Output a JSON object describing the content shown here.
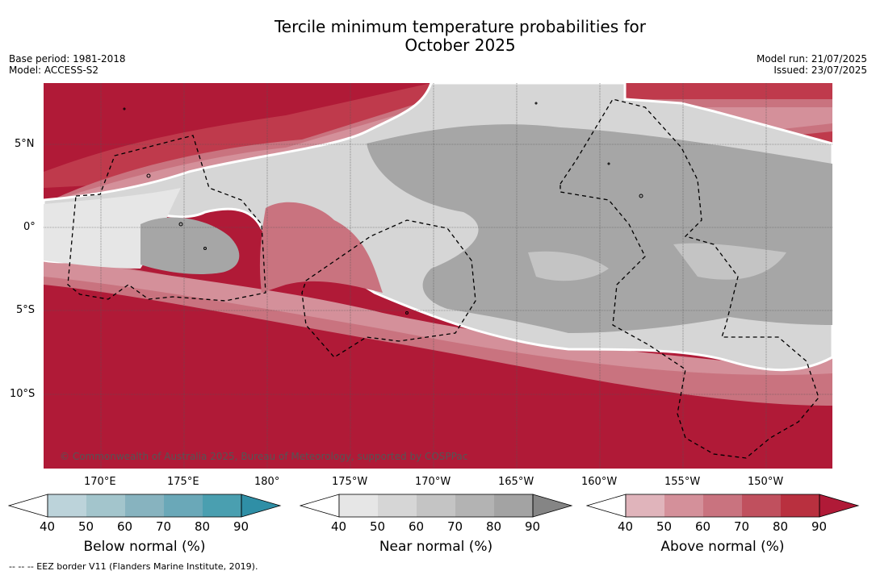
{
  "title_line1": "Tercile minimum temperature probabilities for",
  "title_line2": "October 2025",
  "base_period": "Base period: 1981-2018",
  "model": "Model: ACCESS-S2",
  "model_run": "Model run: 21/07/2025",
  "issued": "Issued: 23/07/2025",
  "lat_labels": [
    "5°N",
    "0°",
    "5°S",
    "10°S"
  ],
  "lon_labels": [
    "170°E",
    "175°E",
    "180°",
    "175°W",
    "170°W",
    "165°W",
    "160°W",
    "155°W",
    "150°W"
  ],
  "copyright": "© Commonwealth of Australia 2025, Bureau of Meteorology, supported by COSPPac",
  "footnote": "--  --  -- EEZ border V11 (Flanders Marine Institute, 2019).",
  "colorbars": [
    {
      "label": "Below normal (%)",
      "ticks": [
        "40",
        "50",
        "60",
        "70",
        "80",
        "90"
      ],
      "colors": [
        "#ffffff",
        "#bcd3da",
        "#a3c5cc",
        "#87b3bf",
        "#6aa8b8",
        "#4a9fb0",
        "#2f8fa6"
      ]
    },
    {
      "label": "Near normal (%)",
      "ticks": [
        "40",
        "50",
        "60",
        "70",
        "80",
        "90"
      ],
      "colors": [
        "#ffffff",
        "#e6e6e6",
        "#d6d6d6",
        "#c4c4c4",
        "#b3b3b3",
        "#a3a3a3",
        "#858585"
      ]
    },
    {
      "label": "Above normal (%)",
      "ticks": [
        "40",
        "50",
        "60",
        "70",
        "80",
        "90"
      ],
      "colors": [
        "#ffffff",
        "#e0b4bb",
        "#d4909a",
        "#c9737f",
        "#c0505e",
        "#b9303f",
        "#b01a37"
      ]
    }
  ]
}
